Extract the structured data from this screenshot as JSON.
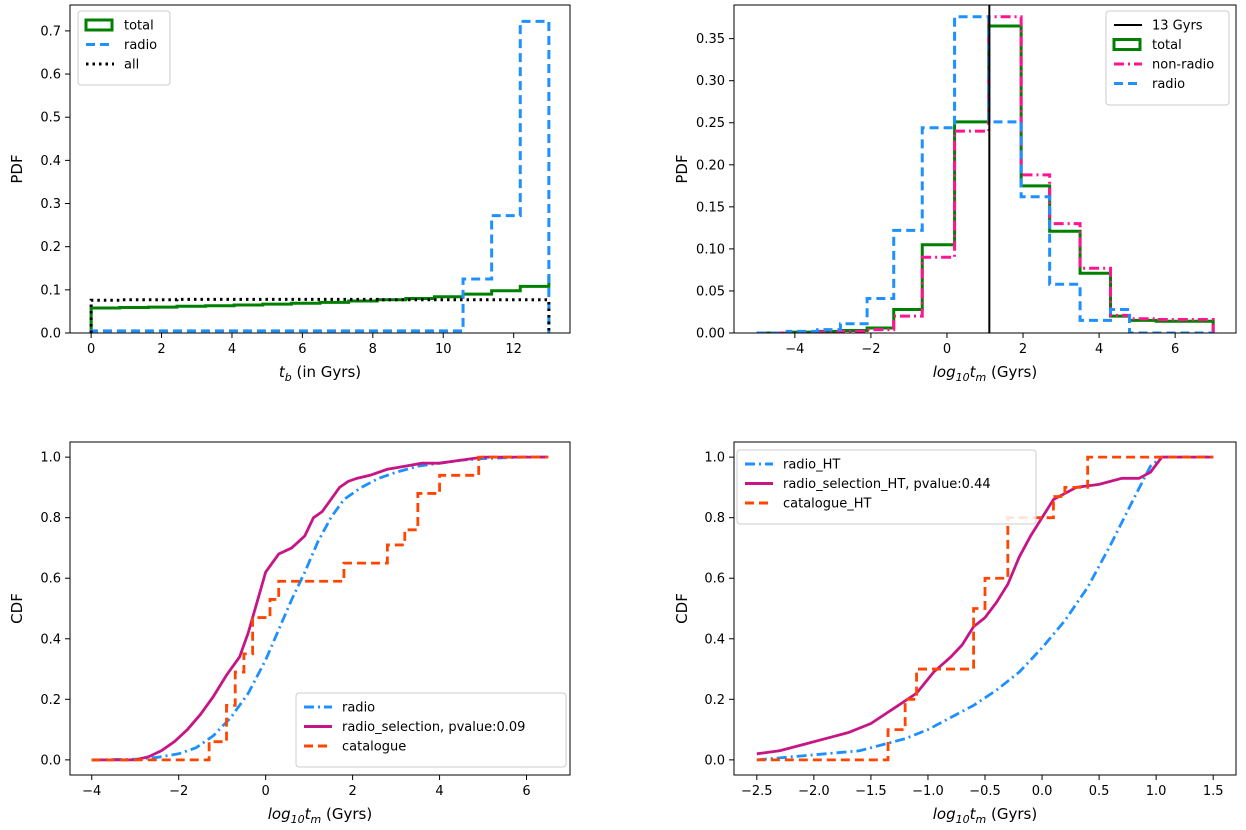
{
  "chart_data": [
    {
      "type": "step",
      "ylabel": "PDF",
      "xlabel": {
        "main": "t",
        "sub": "b",
        "suffix": " (in Gyrs)"
      },
      "xlim": [
        -0.6,
        13.6
      ],
      "ylim": [
        0,
        0.76
      ],
      "xticks": [
        0,
        2,
        4,
        6,
        8,
        10,
        12
      ],
      "yticks": [
        0.0,
        0.1,
        0.2,
        0.3,
        0.4,
        0.5,
        0.6,
        0.7
      ],
      "ytick_labels": [
        "0.0",
        "0.1",
        "0.2",
        "0.3",
        "0.4",
        "0.5",
        "0.6",
        "0.7"
      ],
      "legend_position": "top-left",
      "series": [
        {
          "name": "total",
          "color": "#008000",
          "style": "solid",
          "edges": [
            0,
            0.8125,
            1.625,
            2.4375,
            3.25,
            4.0625,
            4.875,
            5.6875,
            6.5,
            7.3125,
            8.125,
            8.9375,
            9.75,
            10.5625,
            11.375,
            12.1875,
            13
          ],
          "values": [
            0.058,
            0.059,
            0.06,
            0.062,
            0.063,
            0.065,
            0.067,
            0.069,
            0.071,
            0.074,
            0.077,
            0.08,
            0.084,
            0.09,
            0.098,
            0.108,
            0.133
          ]
        },
        {
          "name": "radio",
          "color": "#1E90FF",
          "style": "dashed",
          "edges": [
            0,
            0.8125,
            1.625,
            2.4375,
            3.25,
            4.0625,
            4.875,
            5.6875,
            6.5,
            7.3125,
            8.125,
            8.9375,
            9.75,
            10.5625,
            11.375,
            12.1875,
            13
          ],
          "values": [
            0.005,
            0.005,
            0.005,
            0.005,
            0.005,
            0.005,
            0.005,
            0.005,
            0.005,
            0.005,
            0.005,
            0.005,
            0.005,
            0.125,
            0.272,
            0.722
          ]
        },
        {
          "name": "all",
          "color": "#000000",
          "style": "dotted",
          "edges": [
            0,
            0.8125,
            1.625,
            2.4375,
            3.25,
            4.0625,
            4.875,
            5.6875,
            6.5,
            7.3125,
            8.125,
            8.9375,
            9.75,
            10.5625,
            11.375,
            12.1875,
            13
          ],
          "values": [
            0.076,
            0.077,
            0.077,
            0.078,
            0.078,
            0.078,
            0.078,
            0.078,
            0.078,
            0.078,
            0.077,
            0.077,
            0.077,
            0.077,
            0.077,
            0.077
          ]
        }
      ]
    },
    {
      "type": "step",
      "ylabel": "PDF",
      "xlabel": {
        "main": "log",
        "sub": "10",
        "main2": "t",
        "sub2": "m",
        "suffix": " (Gyrs)"
      },
      "xlim": [
        -5.6,
        7.6
      ],
      "ylim": [
        0,
        0.39
      ],
      "xticks": [
        -4,
        -2,
        0,
        2,
        4,
        6
      ],
      "xtick_labels": [
        "−4",
        "−2",
        "0",
        "2",
        "4",
        "6"
      ],
      "yticks": [
        0.0,
        0.05,
        0.1,
        0.15,
        0.2,
        0.25,
        0.3,
        0.35
      ],
      "ytick_labels": [
        "0.00",
        "0.05",
        "0.10",
        "0.15",
        "0.20",
        "0.25",
        "0.30",
        "0.35"
      ],
      "vline": {
        "name": "13 Gyrs",
        "x": 1.114,
        "color": "#000000"
      },
      "legend_position": "top-right",
      "series": [
        {
          "name": "total",
          "color": "#008000",
          "style": "solid",
          "edges": [
            -5,
            -4.2,
            -3.4,
            -2.8,
            -2.1,
            -1.4,
            -0.65,
            0.2,
            1.1,
            1.95,
            2.7,
            3.5,
            4.3,
            4.8,
            5.5,
            6.2,
            7.0
          ],
          "values": [
            0.0,
            0.001,
            0.002,
            0.003,
            0.006,
            0.028,
            0.105,
            0.251,
            0.365,
            0.175,
            0.121,
            0.071,
            0.02,
            0.015,
            0.014,
            0.014
          ]
        },
        {
          "name": "non-radio",
          "color": "#FF1493",
          "style": "dashdot",
          "edges": [
            -5,
            -4.2,
            -3.4,
            -2.8,
            -2.1,
            -1.4,
            -0.65,
            0.2,
            1.1,
            1.95,
            2.7,
            3.5,
            4.3,
            4.8,
            5.5,
            6.2,
            7.0
          ],
          "values": [
            0.0,
            0.0,
            0.001,
            0.002,
            0.004,
            0.02,
            0.09,
            0.24,
            0.376,
            0.188,
            0.13,
            0.077,
            0.021,
            0.017,
            0.016,
            0.016
          ]
        },
        {
          "name": "radio",
          "color": "#1E90FF",
          "style": "dashed",
          "edges": [
            -5,
            -4.2,
            -3.4,
            -2.8,
            -2.1,
            -1.4,
            -0.65,
            0.2,
            1.1,
            1.95,
            2.7,
            3.5,
            4.3,
            4.8,
            5.5,
            6.2,
            7.0
          ],
          "values": [
            0.0,
            0.002,
            0.004,
            0.011,
            0.041,
            0.122,
            0.244,
            0.376,
            0.251,
            0.162,
            0.058,
            0.015,
            0.028,
            0.0,
            0.0,
            0.0
          ]
        }
      ]
    },
    {
      "type": "line",
      "ylabel": "CDF",
      "xlabel": {
        "main": "log",
        "sub": "10",
        "main2": "t",
        "sub2": "m",
        "suffix": " (Gyrs)"
      },
      "xlim": [
        -4.5,
        7.0
      ],
      "ylim": [
        -0.05,
        1.05
      ],
      "xticks": [
        -4,
        -2,
        0,
        2,
        4,
        6
      ],
      "xtick_labels": [
        "−4",
        "−2",
        "0",
        "2",
        "4",
        "6"
      ],
      "yticks": [
        0.0,
        0.2,
        0.4,
        0.6,
        0.8,
        1.0
      ],
      "ytick_labels": [
        "0.0",
        "0.2",
        "0.4",
        "0.6",
        "0.8",
        "1.0"
      ],
      "legend_position": "lower-right",
      "series": [
        {
          "name": "radio",
          "color": "#1E90FF",
          "style": "dashdot",
          "x": [
            -4.0,
            -3.0,
            -2.5,
            -2.0,
            -1.6,
            -1.2,
            -0.8,
            -0.4,
            0.0,
            0.3,
            0.6,
            0.9,
            1.2,
            1.5,
            1.8,
            2.2,
            2.6,
            3.0,
            3.5,
            4.0,
            4.5,
            5.0,
            5.5,
            6.0,
            6.5
          ],
          "y": [
            0.0,
            0.002,
            0.008,
            0.02,
            0.04,
            0.08,
            0.14,
            0.22,
            0.33,
            0.43,
            0.53,
            0.62,
            0.72,
            0.8,
            0.86,
            0.9,
            0.93,
            0.95,
            0.97,
            0.98,
            0.99,
            0.995,
            0.998,
            1.0,
            1.0
          ]
        },
        {
          "name": "radio_selection, pvalue:0.09",
          "color": "#C71585",
          "style": "solid",
          "x": [
            -4.0,
            -3.0,
            -2.7,
            -2.4,
            -2.1,
            -1.8,
            -1.5,
            -1.2,
            -0.9,
            -0.6,
            -0.4,
            -0.2,
            0.0,
            0.1,
            0.3,
            0.6,
            0.9,
            1.1,
            1.3,
            1.5,
            1.7,
            1.9,
            2.1,
            2.4,
            2.8,
            3.2,
            3.6,
            4.0,
            4.5,
            5.0,
            6.5
          ],
          "y": [
            0.0,
            0.0,
            0.01,
            0.03,
            0.06,
            0.1,
            0.15,
            0.21,
            0.28,
            0.34,
            0.42,
            0.52,
            0.62,
            0.64,
            0.68,
            0.7,
            0.74,
            0.8,
            0.82,
            0.86,
            0.9,
            0.92,
            0.93,
            0.94,
            0.96,
            0.97,
            0.98,
            0.98,
            0.99,
            1.0,
            1.0
          ]
        },
        {
          "name": "catalogue",
          "color": "#FF4500",
          "style": "dashed",
          "stepped": true,
          "x": [
            -4.0,
            -1.3,
            -1.3,
            -0.9,
            -0.9,
            -0.7,
            -0.7,
            -0.5,
            -0.5,
            -0.3,
            -0.3,
            0.1,
            0.1,
            0.3,
            0.3,
            1.8,
            1.8,
            2.8,
            2.8,
            3.2,
            3.2,
            3.5,
            3.5,
            4.0,
            4.0,
            4.9,
            4.9,
            6.5
          ],
          "y": [
            0.0,
            0.0,
            0.06,
            0.06,
            0.18,
            0.18,
            0.29,
            0.29,
            0.35,
            0.35,
            0.47,
            0.47,
            0.53,
            0.53,
            0.59,
            0.59,
            0.65,
            0.65,
            0.71,
            0.71,
            0.76,
            0.76,
            0.88,
            0.88,
            0.94,
            0.94,
            1.0,
            1.0
          ]
        }
      ]
    },
    {
      "type": "line",
      "ylabel": "CDF",
      "xlabel": {
        "main": "log",
        "sub": "10",
        "main2": "t",
        "sub2": "m",
        "suffix": " (Gyrs)"
      },
      "xlim": [
        -2.7,
        1.7
      ],
      "ylim": [
        -0.05,
        1.05
      ],
      "xticks": [
        -2.5,
        -2.0,
        -1.5,
        -1.0,
        -0.5,
        0.0,
        0.5,
        1.0,
        1.5
      ],
      "xtick_labels": [
        "−2.5",
        "−2.0",
        "−1.5",
        "−1.0",
        "−0.5",
        "0.0",
        "0.5",
        "1.0",
        "1.5"
      ],
      "yticks": [
        0.0,
        0.2,
        0.4,
        0.6,
        0.8,
        1.0
      ],
      "ytick_labels": [
        "0.0",
        "0.2",
        "0.4",
        "0.6",
        "0.8",
        "1.0"
      ],
      "legend_position": "top-left",
      "series": [
        {
          "name": "radio_HT",
          "color": "#1E90FF",
          "style": "dashdot",
          "x": [
            -2.5,
            -2.2,
            -1.9,
            -1.6,
            -1.4,
            -1.2,
            -1.0,
            -0.8,
            -0.6,
            -0.4,
            -0.2,
            0.0,
            0.2,
            0.4,
            0.6,
            0.8,
            0.95,
            1.05,
            1.5
          ],
          "y": [
            0.0,
            0.01,
            0.02,
            0.03,
            0.05,
            0.07,
            0.1,
            0.14,
            0.18,
            0.23,
            0.29,
            0.37,
            0.46,
            0.57,
            0.71,
            0.86,
            0.97,
            1.0,
            1.0
          ]
        },
        {
          "name": "radio_selection_HT, pvalue:0.44",
          "color": "#C71585",
          "style": "solid",
          "x": [
            -2.5,
            -2.3,
            -2.1,
            -1.9,
            -1.7,
            -1.5,
            -1.3,
            -1.1,
            -0.95,
            -0.8,
            -0.7,
            -0.6,
            -0.5,
            -0.4,
            -0.3,
            -0.2,
            -0.1,
            0.0,
            0.1,
            0.3,
            0.5,
            0.7,
            0.85,
            0.95,
            1.05,
            1.5
          ],
          "y": [
            0.02,
            0.03,
            0.05,
            0.07,
            0.09,
            0.12,
            0.17,
            0.22,
            0.29,
            0.34,
            0.38,
            0.44,
            0.47,
            0.52,
            0.58,
            0.67,
            0.74,
            0.8,
            0.86,
            0.9,
            0.91,
            0.93,
            0.93,
            0.95,
            1.0,
            1.0
          ]
        },
        {
          "name": "catalogue_HT",
          "color": "#FF4500",
          "style": "dashed",
          "stepped": true,
          "x": [
            -2.5,
            -1.35,
            -1.35,
            -1.2,
            -1.2,
            -1.1,
            -1.1,
            -0.6,
            -0.6,
            -0.5,
            -0.5,
            -0.3,
            -0.3,
            -0.1,
            -0.1,
            0.1,
            0.1,
            0.2,
            0.2,
            0.4,
            0.4,
            1.5
          ],
          "y": [
            0.0,
            0.0,
            0.1,
            0.1,
            0.2,
            0.2,
            0.3,
            0.3,
            0.5,
            0.5,
            0.6,
            0.6,
            0.8,
            0.8,
            0.8,
            0.8,
            0.87,
            0.87,
            0.9,
            0.9,
            1.0,
            1.0
          ]
        }
      ]
    }
  ]
}
